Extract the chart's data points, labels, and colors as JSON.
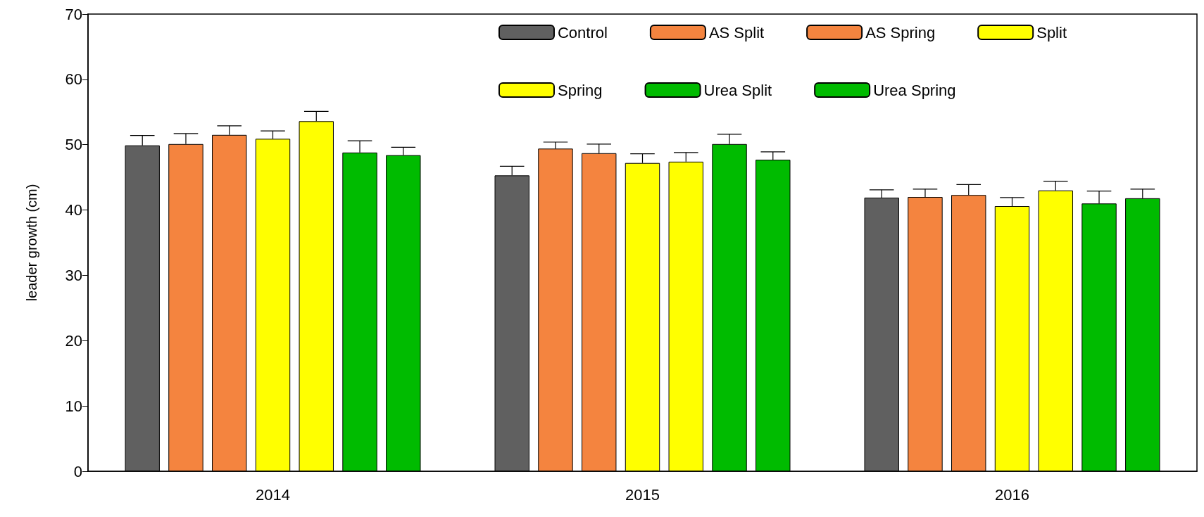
{
  "chart_data": {
    "type": "bar",
    "ylabel": "leader growth (cm)",
    "categories": [
      "2014",
      "2015",
      "2016"
    ],
    "series": [
      {
        "name": "Control",
        "color": "#606060",
        "values": [
          49.9,
          45.3,
          41.9
        ],
        "errors": [
          [
            49.9,
            51.4
          ],
          [
            45.3,
            46.7
          ],
          [
            41.9,
            43.1
          ]
        ]
      },
      {
        "name": "AS Split",
        "color": "#f4843f",
        "values": [
          50.1,
          49.4,
          42.0
        ],
        "errors": [
          [
            50.1,
            51.7
          ],
          [
            49.4,
            50.4
          ],
          [
            42.0,
            43.2
          ]
        ]
      },
      {
        "name": "AS Spring",
        "color": "#f4843f",
        "values": [
          51.5,
          48.7,
          42.3
        ],
        "errors": [
          [
            51.5,
            52.9
          ],
          [
            48.7,
            50.1
          ],
          [
            42.3,
            43.9
          ]
        ]
      },
      {
        "name": "Split",
        "color": "#ffff00",
        "values": [
          50.9,
          47.2,
          40.6
        ],
        "errors": [
          [
            50.9,
            52.1
          ],
          [
            47.2,
            48.6
          ],
          [
            40.6,
            41.9
          ]
        ]
      },
      {
        "name": "Spring",
        "color": "#ffff00",
        "values": [
          53.6,
          47.4,
          43.0
        ],
        "errors": [
          [
            53.6,
            55.1
          ],
          [
            47.4,
            48.8
          ],
          [
            43.0,
            44.4
          ]
        ]
      },
      {
        "name": "Urea Split",
        "color": "#00bb00",
        "values": [
          48.8,
          50.1,
          41.0
        ],
        "errors": [
          [
            48.8,
            50.6
          ],
          [
            50.1,
            51.6
          ],
          [
            41.0,
            42.9
          ]
        ]
      },
      {
        "name": "Urea Spring",
        "color": "#00bb00",
        "values": [
          48.4,
          47.7,
          41.8
        ],
        "errors": [
          [
            48.4,
            49.6
          ],
          [
            47.7,
            48.9
          ],
          [
            41.8,
            43.2
          ]
        ]
      }
    ],
    "ylim": [
      0,
      70
    ],
    "yticks": [
      0,
      10,
      20,
      30,
      40,
      50,
      60,
      70
    ],
    "grid": false,
    "legend": "top right"
  }
}
